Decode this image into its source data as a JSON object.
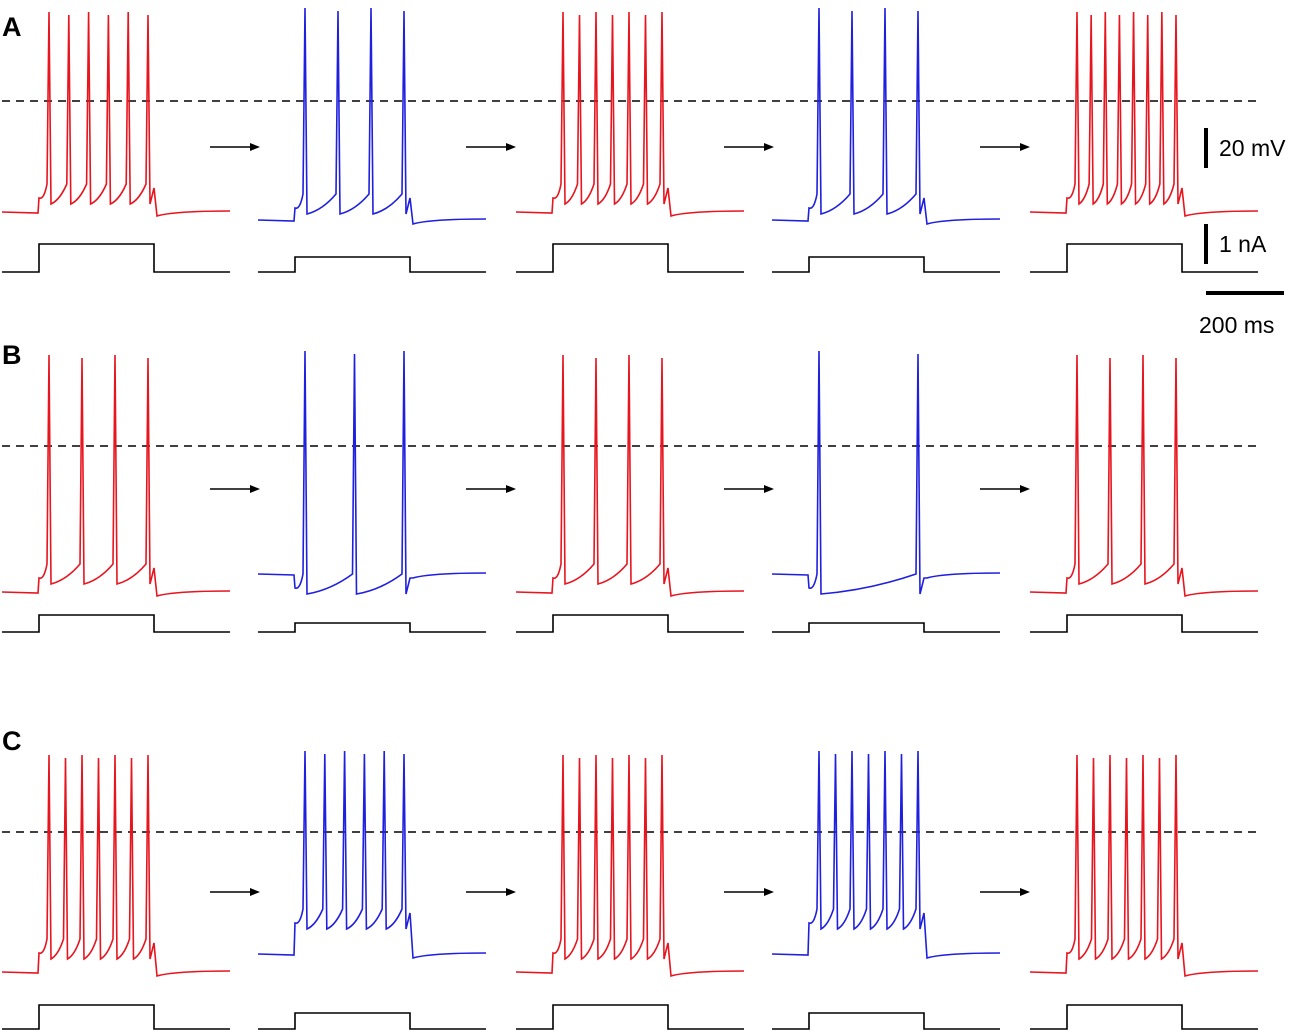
{
  "figure": {
    "panels": [
      {
        "label": "A",
        "colors": [
          "#e8141e",
          "#1f1fe0",
          "#e8141e",
          "#1f1fe0",
          "#e8141e"
        ],
        "spike_counts": [
          6,
          4,
          7,
          4,
          8
        ]
      },
      {
        "label": "B",
        "colors": [
          "#e8141e",
          "#1f1fe0",
          "#e8141e",
          "#1f1fe0",
          "#e8141e"
        ],
        "spike_counts": [
          4,
          3,
          4,
          2,
          4
        ]
      },
      {
        "label": "C",
        "colors": [
          "#e8141e",
          "#1f1fe0",
          "#e8141e",
          "#1f1fe0",
          "#e8141e"
        ],
        "spike_counts": [
          7,
          6,
          7,
          7,
          7
        ]
      }
    ],
    "scale_bars": {
      "voltage": "20 mV",
      "current": "1 nA",
      "time": "200 ms"
    },
    "colors": {
      "control": "#e8141e",
      "treatment": "#1f1fe0",
      "stimulus": "#000000"
    }
  }
}
